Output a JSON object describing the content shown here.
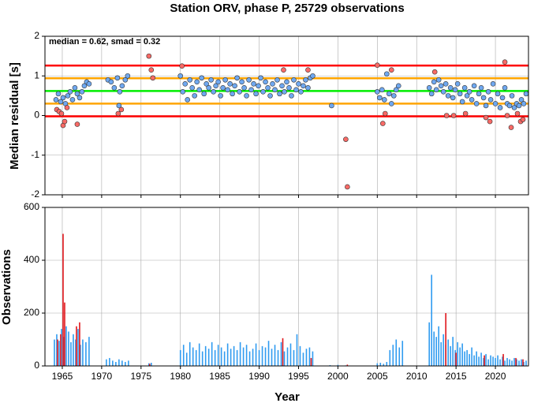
{
  "chart_data": [
    {
      "type": "scatter",
      "title": "Station ORV, phase P, 25729 observations",
      "ylabel": "Median residual [s]",
      "annotation": "median = 0.62, smad = 0.32",
      "xlim": [
        1962.8,
        2024.2
      ],
      "xticks": [
        1965,
        1970,
        1975,
        1980,
        1985,
        1990,
        1995,
        2000,
        2005,
        2010,
        2015,
        2020
      ],
      "ylim": [
        -2,
        2
      ],
      "yticks": [
        -2,
        -1,
        0,
        1,
        2
      ],
      "grid": true,
      "hlines": [
        {
          "value": 1.26,
          "color": "#ff0000"
        },
        {
          "value": 0.94,
          "color": "#ffa500"
        },
        {
          "value": 0.62,
          "color": "#00ee00"
        },
        {
          "value": 0.3,
          "color": "#ffa500"
        },
        {
          "value": -0.02,
          "color": "#ff0000"
        }
      ],
      "series": [
        {
          "color": "#6fa8f0",
          "x": [
            1964.2,
            1964.5,
            1964.8,
            1965.1,
            1965.4,
            1965.7,
            1966.0,
            1966.3,
            1966.6,
            1966.9,
            1967.2,
            1967.5,
            1967.8,
            1968.1,
            1968.4,
            1970.8,
            1971.2,
            1971.6,
            1972.0,
            1972.3,
            1972.6,
            1973.0,
            1973.3,
            1972.2,
            1980.0,
            1980.3,
            1980.6,
            1980.9,
            1981.2,
            1981.5,
            1981.8,
            1982.1,
            1982.4,
            1982.7,
            1983.0,
            1983.3,
            1983.6,
            1983.9,
            1984.2,
            1984.5,
            1984.8,
            1985.1,
            1985.4,
            1985.7,
            1986.0,
            1986.3,
            1986.6,
            1986.9,
            1987.2,
            1987.5,
            1987.8,
            1988.1,
            1988.4,
            1988.7,
            1989.0,
            1989.3,
            1989.6,
            1989.9,
            1990.2,
            1990.5,
            1990.8,
            1991.1,
            1991.4,
            1991.7,
            1992.0,
            1992.3,
            1992.6,
            1992.9,
            1993.2,
            1993.5,
            1993.8,
            1994.1,
            1994.4,
            1994.7,
            1995.0,
            1995.3,
            1995.6,
            1995.9,
            1996.2,
            1996.5,
            1996.8,
            1999.2,
            2005.0,
            2005.3,
            2005.6,
            2005.9,
            2006.2,
            2006.5,
            2006.8,
            2007.1,
            2007.4,
            2007.7,
            2011.6,
            2011.9,
            2012.2,
            2012.5,
            2012.8,
            2013.1,
            2013.4,
            2013.7,
            2014.0,
            2014.3,
            2014.6,
            2014.9,
            2015.2,
            2015.5,
            2015.8,
            2016.1,
            2016.4,
            2016.7,
            2017.0,
            2017.3,
            2017.6,
            2017.9,
            2018.2,
            2018.5,
            2018.8,
            2019.1,
            2019.4,
            2019.7,
            2020.0,
            2020.3,
            2020.6,
            2020.9,
            2021.2,
            2021.5,
            2021.8,
            2022.1,
            2022.4,
            2022.7,
            2023.0,
            2023.3,
            2023.6,
            2023.9
          ],
          "values": [
            0.4,
            0.55,
            0.35,
            0.45,
            0.3,
            0.5,
            0.6,
            0.4,
            0.7,
            0.55,
            0.45,
            0.6,
            0.75,
            0.85,
            0.8,
            0.9,
            0.85,
            0.7,
            0.95,
            0.6,
            0.75,
            0.9,
            1.0,
            0.25,
            1.0,
            0.6,
            0.8,
            0.4,
            0.9,
            0.7,
            0.5,
            0.85,
            0.65,
            0.95,
            0.55,
            0.8,
            0.7,
            0.9,
            0.6,
            0.75,
            0.85,
            0.5,
            0.7,
            0.9,
            0.65,
            0.8,
            0.55,
            0.75,
            0.95,
            0.6,
            0.85,
            0.7,
            0.5,
            0.9,
            0.65,
            0.8,
            0.55,
            0.75,
            0.95,
            0.6,
            0.85,
            0.7,
            0.5,
            0.8,
            0.65,
            0.9,
            0.55,
            0.75,
            0.6,
            0.85,
            0.7,
            0.5,
            0.9,
            0.65,
            0.8,
            0.6,
            0.75,
            0.9,
            0.7,
            0.95,
            1.0,
            0.25,
            0.6,
            0.45,
            0.65,
            0.4,
            1.05,
            0.55,
            0.3,
            0.5,
            0.65,
            0.75,
            0.7,
            0.55,
            0.85,
            0.65,
            0.9,
            0.75,
            0.6,
            0.8,
            0.5,
            0.7,
            0.45,
            0.65,
            0.8,
            0.55,
            0.35,
            0.7,
            0.5,
            0.6,
            0.4,
            0.75,
            0.3,
            0.55,
            0.7,
            0.45,
            0.25,
            0.6,
            0.4,
            0.8,
            0.3,
            0.55,
            0.2,
            0.45,
            0.7,
            0.3,
            0.25,
            0.5,
            0.2,
            0.3,
            0.25,
            0.4,
            0.3,
            0.55
          ]
        },
        {
          "color": "#f86a66",
          "x": [
            1964.3,
            1964.6,
            1964.9,
            1965.1,
            1965.3,
            1965.6,
            1966.9,
            1972.1,
            1972.5,
            1976.0,
            1976.3,
            1976.5,
            1980.2,
            1993.1,
            1996.2,
            2001.0,
            2001.2,
            2005.0,
            2005.7,
            2006.0,
            2006.8,
            2012.3,
            2013.8,
            2014.7,
            2016.2,
            2018.8,
            2019.3,
            2021.2,
            2021.5,
            2022.0,
            2022.8,
            2023.2,
            2023.5
          ],
          "values": [
            0.15,
            0.1,
            0.05,
            -0.25,
            -0.15,
            0.2,
            -0.22,
            0.05,
            0.15,
            1.5,
            1.15,
            0.95,
            1.25,
            1.15,
            1.15,
            -0.6,
            -1.8,
            1.27,
            -0.2,
            0.05,
            1.15,
            1.1,
            0.0,
            0.0,
            0.05,
            -0.05,
            -0.15,
            1.35,
            0.0,
            -0.3,
            0.05,
            -0.15,
            -0.1
          ]
        }
      ]
    },
    {
      "type": "bar",
      "ylabel": "Observations",
      "xlabel": "Year",
      "xlim": [
        1962.8,
        2024.2
      ],
      "xticks": [
        1965,
        1970,
        1975,
        1980,
        1985,
        1990,
        1995,
        2000,
        2005,
        2010,
        2015,
        2020
      ],
      "ylim": [
        0,
        600
      ],
      "yticks": [
        0,
        200,
        400,
        600
      ],
      "grid": true,
      "series": [
        {
          "color": "#2f9bf0",
          "x": [
            1964.0,
            1964.3,
            1964.6,
            1964.9,
            1965.2,
            1965.5,
            1965.8,
            1966.1,
            1966.4,
            1966.7,
            1967.0,
            1967.3,
            1967.6,
            1968.0,
            1968.4,
            1970.6,
            1971.0,
            1971.4,
            1971.8,
            1972.2,
            1972.6,
            1973.0,
            1973.4,
            1976.0,
            1976.3,
            1980.0,
            1980.4,
            1980.8,
            1981.2,
            1981.6,
            1982.0,
            1982.4,
            1982.8,
            1983.2,
            1983.6,
            1984.0,
            1984.4,
            1984.8,
            1985.2,
            1985.6,
            1986.0,
            1986.4,
            1986.8,
            1987.2,
            1987.6,
            1988.0,
            1988.4,
            1988.8,
            1989.2,
            1989.6,
            1990.0,
            1990.4,
            1990.8,
            1991.2,
            1991.6,
            1992.0,
            1992.4,
            1992.8,
            1993.2,
            1993.6,
            1994.0,
            1994.4,
            1994.8,
            1995.2,
            1995.6,
            1996.0,
            1996.4,
            1996.8,
            1999.0,
            2000.0,
            2001.0,
            2005.0,
            2005.4,
            2005.8,
            2006.2,
            2006.6,
            2007.0,
            2007.4,
            2007.8,
            2008.2,
            2011.6,
            2011.9,
            2012.2,
            2012.5,
            2012.8,
            2013.1,
            2013.4,
            2013.7,
            2014.0,
            2014.3,
            2014.6,
            2014.9,
            2015.2,
            2015.5,
            2015.8,
            2016.1,
            2016.4,
            2016.7,
            2017.0,
            2017.3,
            2017.6,
            2017.9,
            2018.2,
            2018.5,
            2018.8,
            2019.1,
            2019.4,
            2019.7,
            2020.0,
            2020.3,
            2020.6,
            2020.9,
            2021.2,
            2021.5,
            2021.8,
            2022.1,
            2022.4,
            2022.7,
            2023.0,
            2023.3,
            2023.6,
            2023.9
          ],
          "values": [
            100,
            120,
            95,
            140,
            110,
            150,
            130,
            90,
            120,
            100,
            140,
            80,
            100,
            90,
            110,
            25,
            30,
            20,
            15,
            25,
            20,
            15,
            20,
            10,
            12,
            60,
            80,
            50,
            90,
            70,
            60,
            85,
            55,
            75,
            65,
            90,
            60,
            80,
            70,
            55,
            85,
            65,
            75,
            60,
            90,
            70,
            80,
            55,
            65,
            85,
            60,
            75,
            70,
            95,
            65,
            80,
            60,
            90,
            55,
            70,
            85,
            60,
            120,
            75,
            50,
            65,
            70,
            55,
            3,
            4,
            2,
            10,
            12,
            8,
            15,
            60,
            80,
            100,
            70,
            95,
            165,
            345,
            130,
            110,
            150,
            90,
            120,
            80,
            100,
            75,
            110,
            60,
            90,
            70,
            85,
            55,
            60,
            45,
            70,
            40,
            55,
            35,
            50,
            30,
            45,
            25,
            40,
            35,
            30,
            40,
            25,
            35,
            20,
            30,
            25,
            20,
            30,
            25,
            20,
            25,
            15,
            20
          ]
        },
        {
          "color": "#e0161b",
          "x": [
            1964.4,
            1964.8,
            1965.1,
            1965.3,
            1966.8,
            1967.2,
            1976.1,
            1993.0,
            1996.6,
            2001.2,
            2013.7,
            2015.0,
            2018.6,
            2021.0,
            2022.6,
            2023.5
          ],
          "values": [
            100,
            120,
            500,
            240,
            150,
            165,
            8,
            105,
            30,
            5,
            200,
            50,
            40,
            45,
            30,
            25
          ]
        }
      ]
    }
  ]
}
